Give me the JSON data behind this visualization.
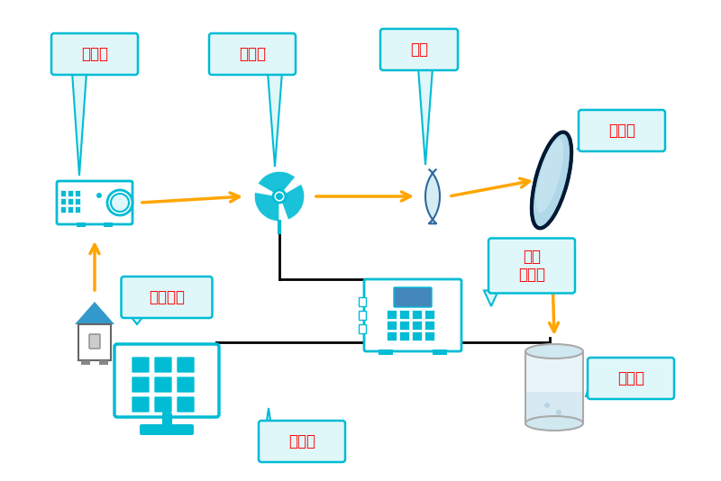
{
  "background_color": "#ffffff",
  "labels": {
    "monochromator": "单色仪",
    "modulator": "调制扇",
    "lens": "透镜",
    "mirror": "反光镜",
    "xe_lamp": "氙灯光源",
    "lock_in": "锁相\n放大器",
    "computer": "计算机",
    "sample": "样品池"
  },
  "label_color": "#ff0000",
  "bubble_edge_color": "#00bcd4",
  "bubble_fill": "#e0f7fa",
  "arrow_color_orange": "#FFA500",
  "arrow_color_black": "#000000",
  "device_color_main": "#00bcd4",
  "device_color_dark": "#0077aa"
}
